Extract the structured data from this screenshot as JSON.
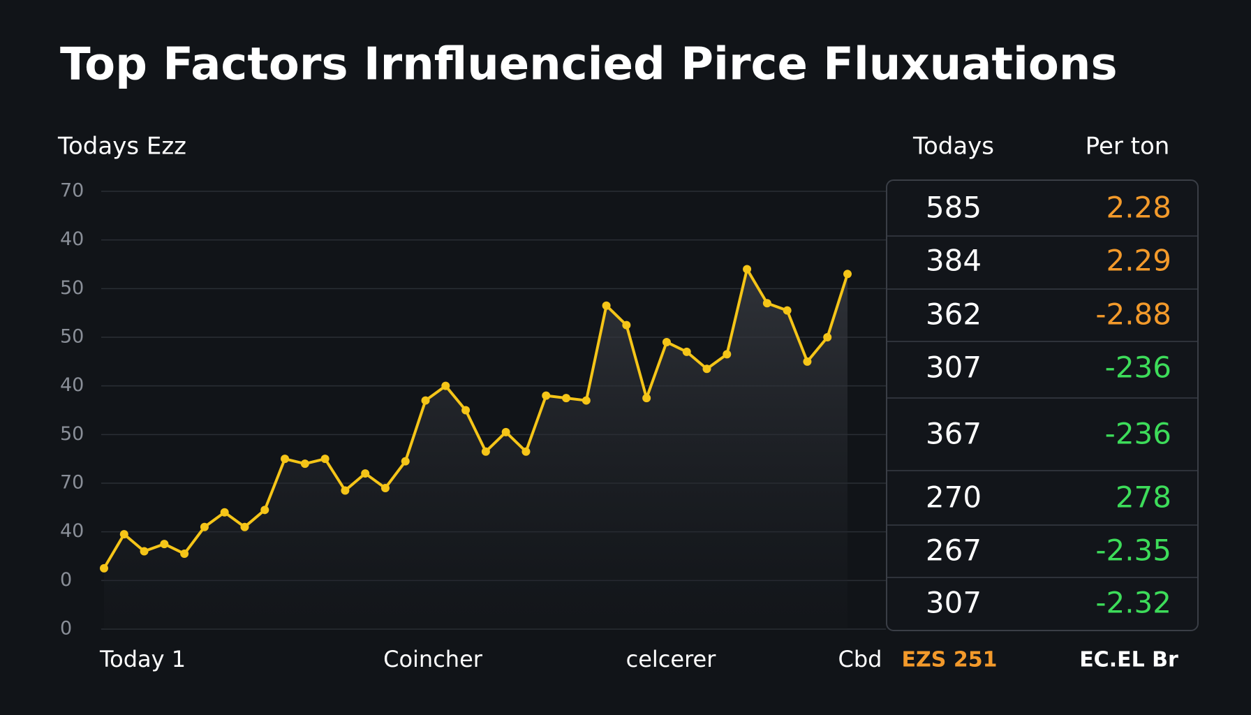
{
  "chart_data": {
    "type": "line",
    "title": "Top Factors Irnfluencied Pirce Fluxuations",
    "subtitle": "Todays Ezz",
    "y_labels": [
      "70",
      "40",
      "50",
      "50",
      "40",
      "50",
      "70",
      "40",
      "0",
      "0"
    ],
    "ylim": [
      0,
      9
    ],
    "x_labels": [
      "Today 1",
      "Coincher",
      "celcerer",
      "Cbd"
    ],
    "series": [
      {
        "color": "#f5c518",
        "values": [
          1.25,
          1.95,
          1.6,
          1.75,
          1.55,
          2.1,
          2.4,
          2.1,
          2.45,
          3.5,
          3.4,
          3.5,
          2.85,
          3.2,
          2.9,
          3.45,
          4.7,
          5.0,
          4.5,
          3.65,
          4.05,
          3.65,
          4.8,
          4.75,
          4.7,
          6.65,
          6.25,
          4.75,
          5.9,
          5.7,
          5.35,
          5.65,
          7.4,
          6.7,
          6.55,
          5.5,
          6.0,
          7.3
        ]
      }
    ]
  },
  "table": {
    "headers": [
      "Todays",
      "Per ton"
    ],
    "rows": [
      [
        585,
        2.28
      ],
      [
        384,
        2.29
      ],
      [
        362,
        -2.88
      ],
      [
        307,
        -236
      ],
      [
        367,
        -236
      ],
      [
        270,
        278
      ],
      [
        267,
        -2.35
      ],
      [
        307,
        -2.32
      ]
    ],
    "colors": [
      "#f39a2b",
      "#f39a2b",
      "#f39a2b",
      "#3ddc5a",
      "#3ddc5a",
      "#3ddc5a",
      "#3ddc5a",
      "#3ddc5a"
    ],
    "footer": [
      "EZS 251",
      "EC.EL Br"
    ],
    "footer_colors": [
      "#f39a2b",
      "#ffffff"
    ]
  }
}
